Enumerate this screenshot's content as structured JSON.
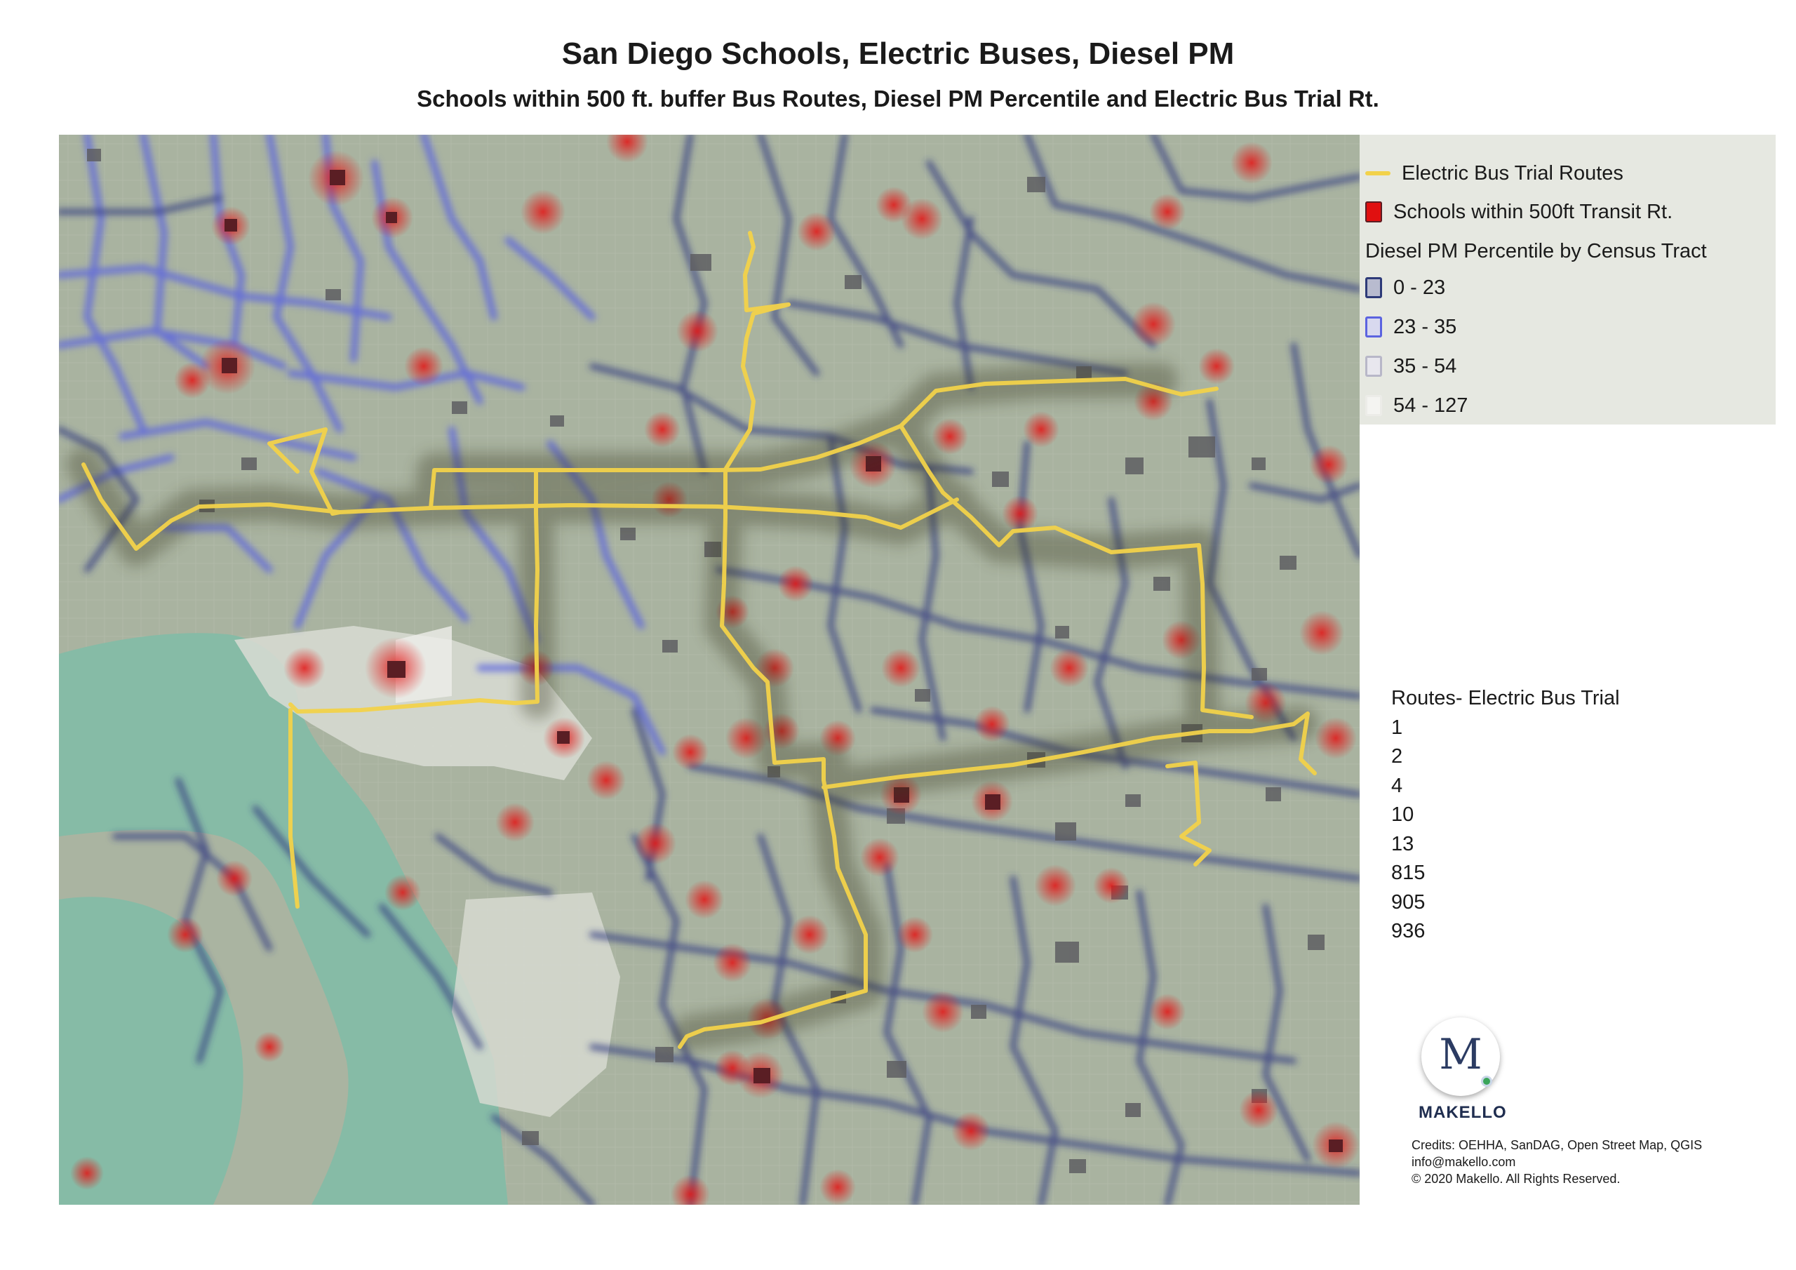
{
  "title": "San Diego Schools,  Electric Buses,  Diesel PM",
  "subtitle": "Schools within 500 ft. buffer Bus Routes, Diesel PM Percentile and Electric Bus Trial Rt.",
  "legend": {
    "electric_routes": "Electric Bus Trial Routes",
    "schools": "Schools within 500ft Transit Rt.",
    "diesel_heading": "Diesel PM Percentile by Census Tract",
    "classes": [
      {
        "label": "0 - 23",
        "color": "#2d3a78"
      },
      {
        "label": "23 - 35",
        "color": "#5b63e0"
      },
      {
        "label": "35 - 54",
        "color": "#b8b7c8"
      },
      {
        "label": "54 - 127",
        "color": "#f4f4f1"
      }
    ],
    "colors": {
      "route": "#f2d24a",
      "school": "#e01010",
      "school_fill": "#6a6a6a",
      "water": "#86bba6",
      "land": "#a9b3a0"
    }
  },
  "routes": {
    "heading": "Routes- Electric Bus Trial",
    "items": [
      "1",
      "2",
      "4",
      "10",
      "13",
      "815",
      "905",
      "936"
    ]
  },
  "logo": {
    "letter": "M",
    "name": "MAKELLO"
  },
  "credits": [
    "Credits: OEHHA, SanDAG, Open Street Map, QGIS",
    "info@makello.com",
    "© 2020 Makello. All Rights Reserved."
  ]
}
